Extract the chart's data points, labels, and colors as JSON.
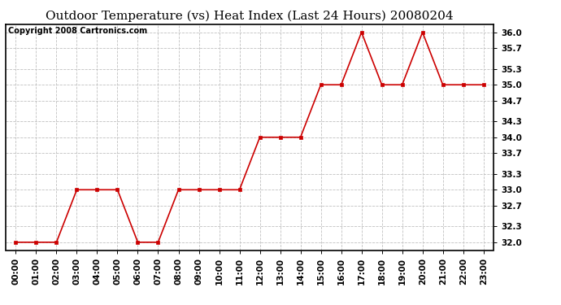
{
  "title": "Outdoor Temperature (vs) Heat Index (Last 24 Hours) 20080204",
  "copyright_text": "Copyright 2008 Cartronics.com",
  "x_labels": [
    "00:00",
    "01:00",
    "02:00",
    "03:00",
    "04:00",
    "05:00",
    "06:00",
    "07:00",
    "08:00",
    "09:00",
    "10:00",
    "11:00",
    "12:00",
    "13:00",
    "14:00",
    "15:00",
    "16:00",
    "17:00",
    "18:00",
    "19:00",
    "20:00",
    "21:00",
    "22:00",
    "23:00"
  ],
  "y_values": [
    32.0,
    32.0,
    32.0,
    33.0,
    33.0,
    33.0,
    32.0,
    32.0,
    33.0,
    33.0,
    33.0,
    33.0,
    34.0,
    34.0,
    34.0,
    35.0,
    35.0,
    36.0,
    35.0,
    35.0,
    36.0,
    35.0,
    35.0,
    35.0
  ],
  "y_ticks": [
    32.0,
    32.3,
    32.7,
    33.0,
    33.3,
    33.7,
    34.0,
    34.3,
    34.7,
    35.0,
    35.3,
    35.7,
    36.0
  ],
  "y_tick_labels": [
    "32.0",
    "32.3",
    "32.7",
    "33.0",
    "33.3",
    "33.7",
    "34.0",
    "34.3",
    "34.7",
    "35.0",
    "35.3",
    "35.7",
    "36.0"
  ],
  "ylim": [
    31.85,
    36.15
  ],
  "line_color": "#cc0000",
  "marker_color": "#cc0000",
  "background_color": "#ffffff",
  "grid_color": "#c0c0c0",
  "title_fontsize": 11,
  "copyright_fontsize": 7,
  "tick_fontsize": 7.5,
  "figure_width": 6.9,
  "figure_height": 3.75,
  "figure_dpi": 100
}
